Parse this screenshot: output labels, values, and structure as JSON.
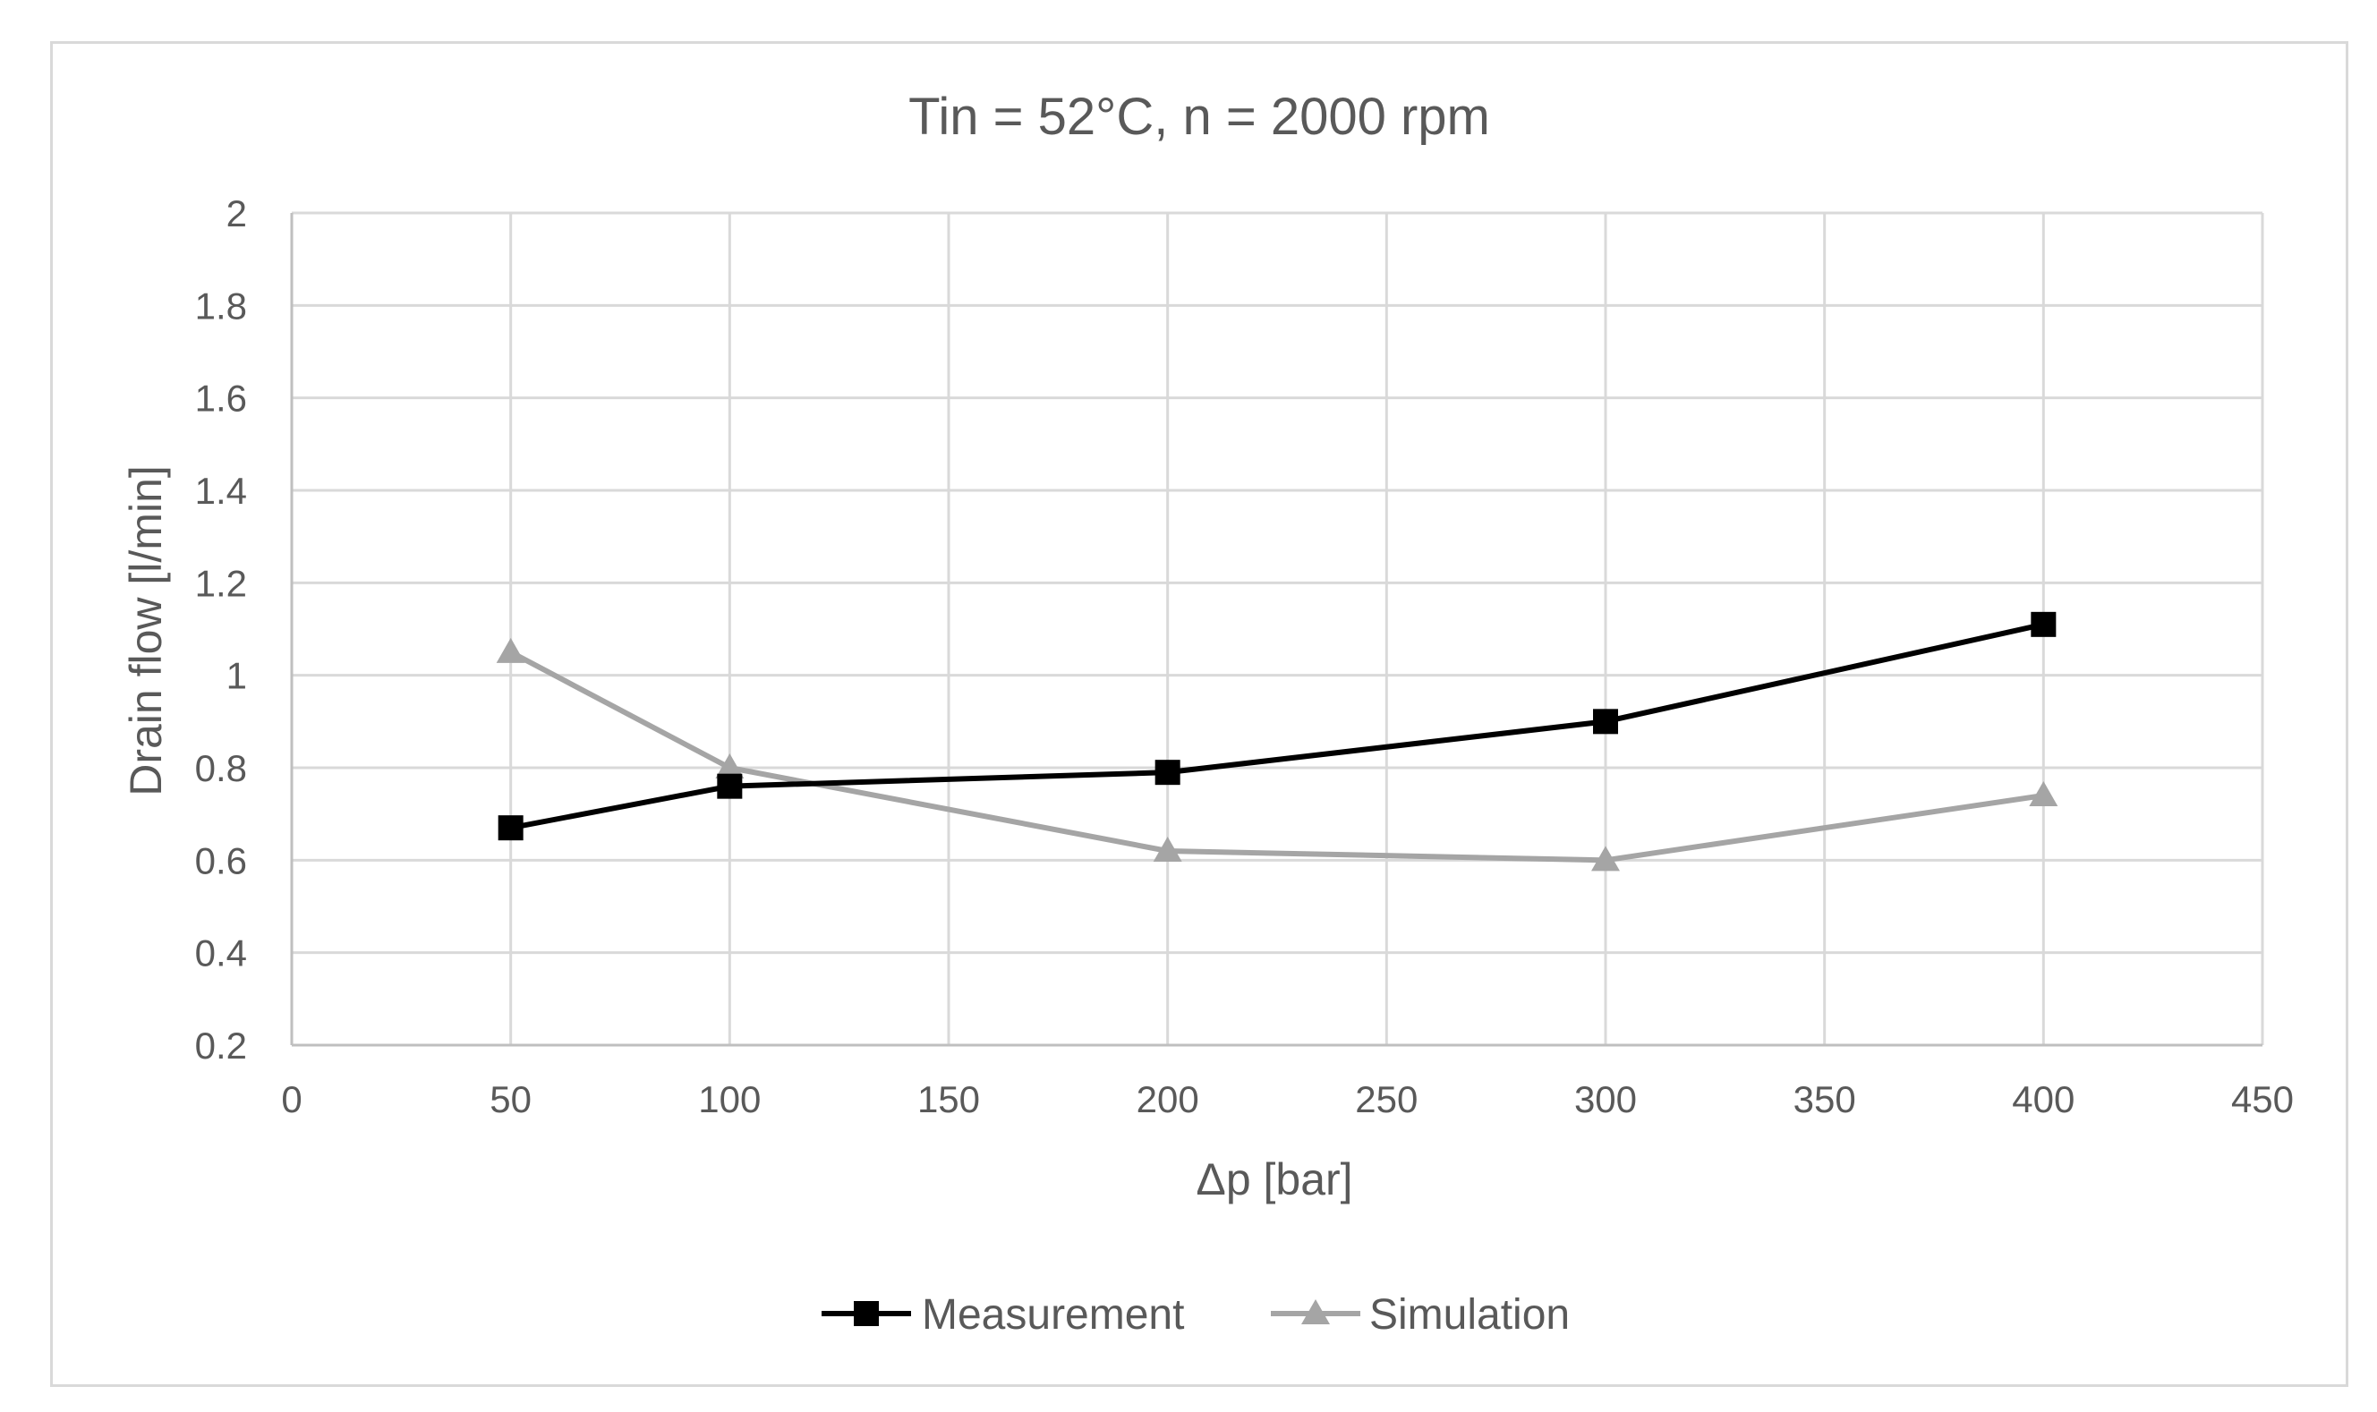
{
  "chart_data": {
    "type": "line",
    "title": "Tin = 52°C, n = 2000 rpm",
    "xlabel": "Δp [bar]",
    "ylabel": "Drain flow [l/min]",
    "xlim": [
      0,
      450
    ],
    "ylim": [
      0.2,
      2
    ],
    "x_ticks": [
      0,
      50,
      100,
      150,
      200,
      250,
      300,
      350,
      400,
      450
    ],
    "x_tick_labels": [
      "0",
      "50",
      "100",
      "150",
      "200",
      "250",
      "300",
      "350",
      "400",
      "450"
    ],
    "y_ticks": [
      0.2,
      0.4,
      0.6,
      0.8,
      1.0,
      1.2,
      1.4,
      1.6,
      1.8,
      2.0
    ],
    "y_tick_labels": [
      "0.2",
      "0.4",
      "0.6",
      "0.8",
      "1",
      "1.2",
      "1.4",
      "1.6",
      "1.8",
      "2"
    ],
    "grid": true,
    "legend_position": "bottom-center",
    "series": [
      {
        "name": "Measurement",
        "marker": "square",
        "color": "#000000",
        "x": [
          50,
          100,
          200,
          300,
          400
        ],
        "y": [
          0.67,
          0.76,
          0.79,
          0.9,
          1.11
        ]
      },
      {
        "name": "Simulation",
        "marker": "triangle",
        "color": "#a5a5a5",
        "x": [
          50,
          100,
          200,
          300,
          400
        ],
        "y": [
          1.05,
          0.8,
          0.62,
          0.6,
          0.74
        ]
      }
    ]
  }
}
